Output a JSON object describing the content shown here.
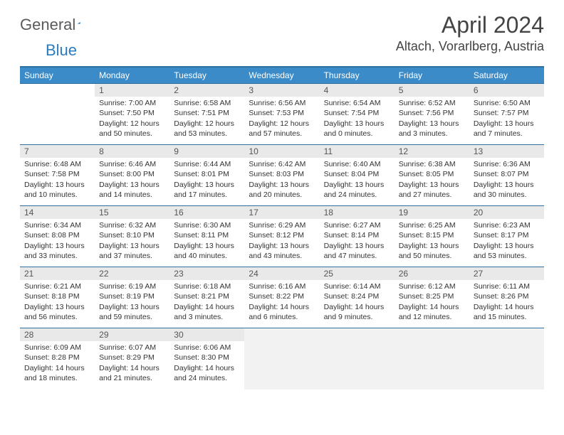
{
  "logo": {
    "text1": "General",
    "text2": "Blue"
  },
  "title": "April 2024",
  "location": "Altach, Vorarlberg, Austria",
  "colors": {
    "header_bg": "#3b8bc9",
    "header_border": "#2f6fa0",
    "daynum_bg": "#e9e9e9",
    "filler_bg": "#f2f2f2"
  },
  "weekdays": [
    "Sunday",
    "Monday",
    "Tuesday",
    "Wednesday",
    "Thursday",
    "Friday",
    "Saturday"
  ],
  "weeks": [
    [
      null,
      {
        "n": "1",
        "sr": "7:00 AM",
        "ss": "7:50 PM",
        "dl": "12 hours and 50 minutes."
      },
      {
        "n": "2",
        "sr": "6:58 AM",
        "ss": "7:51 PM",
        "dl": "12 hours and 53 minutes."
      },
      {
        "n": "3",
        "sr": "6:56 AM",
        "ss": "7:53 PM",
        "dl": "12 hours and 57 minutes."
      },
      {
        "n": "4",
        "sr": "6:54 AM",
        "ss": "7:54 PM",
        "dl": "13 hours and 0 minutes."
      },
      {
        "n": "5",
        "sr": "6:52 AM",
        "ss": "7:56 PM",
        "dl": "13 hours and 3 minutes."
      },
      {
        "n": "6",
        "sr": "6:50 AM",
        "ss": "7:57 PM",
        "dl": "13 hours and 7 minutes."
      }
    ],
    [
      {
        "n": "7",
        "sr": "6:48 AM",
        "ss": "7:58 PM",
        "dl": "13 hours and 10 minutes."
      },
      {
        "n": "8",
        "sr": "6:46 AM",
        "ss": "8:00 PM",
        "dl": "13 hours and 14 minutes."
      },
      {
        "n": "9",
        "sr": "6:44 AM",
        "ss": "8:01 PM",
        "dl": "13 hours and 17 minutes."
      },
      {
        "n": "10",
        "sr": "6:42 AM",
        "ss": "8:03 PM",
        "dl": "13 hours and 20 minutes."
      },
      {
        "n": "11",
        "sr": "6:40 AM",
        "ss": "8:04 PM",
        "dl": "13 hours and 24 minutes."
      },
      {
        "n": "12",
        "sr": "6:38 AM",
        "ss": "8:05 PM",
        "dl": "13 hours and 27 minutes."
      },
      {
        "n": "13",
        "sr": "6:36 AM",
        "ss": "8:07 PM",
        "dl": "13 hours and 30 minutes."
      }
    ],
    [
      {
        "n": "14",
        "sr": "6:34 AM",
        "ss": "8:08 PM",
        "dl": "13 hours and 33 minutes."
      },
      {
        "n": "15",
        "sr": "6:32 AM",
        "ss": "8:10 PM",
        "dl": "13 hours and 37 minutes."
      },
      {
        "n": "16",
        "sr": "6:30 AM",
        "ss": "8:11 PM",
        "dl": "13 hours and 40 minutes."
      },
      {
        "n": "17",
        "sr": "6:29 AM",
        "ss": "8:12 PM",
        "dl": "13 hours and 43 minutes."
      },
      {
        "n": "18",
        "sr": "6:27 AM",
        "ss": "8:14 PM",
        "dl": "13 hours and 47 minutes."
      },
      {
        "n": "19",
        "sr": "6:25 AM",
        "ss": "8:15 PM",
        "dl": "13 hours and 50 minutes."
      },
      {
        "n": "20",
        "sr": "6:23 AM",
        "ss": "8:17 PM",
        "dl": "13 hours and 53 minutes."
      }
    ],
    [
      {
        "n": "21",
        "sr": "6:21 AM",
        "ss": "8:18 PM",
        "dl": "13 hours and 56 minutes."
      },
      {
        "n": "22",
        "sr": "6:19 AM",
        "ss": "8:19 PM",
        "dl": "13 hours and 59 minutes."
      },
      {
        "n": "23",
        "sr": "6:18 AM",
        "ss": "8:21 PM",
        "dl": "14 hours and 3 minutes."
      },
      {
        "n": "24",
        "sr": "6:16 AM",
        "ss": "8:22 PM",
        "dl": "14 hours and 6 minutes."
      },
      {
        "n": "25",
        "sr": "6:14 AM",
        "ss": "8:24 PM",
        "dl": "14 hours and 9 minutes."
      },
      {
        "n": "26",
        "sr": "6:12 AM",
        "ss": "8:25 PM",
        "dl": "14 hours and 12 minutes."
      },
      {
        "n": "27",
        "sr": "6:11 AM",
        "ss": "8:26 PM",
        "dl": "14 hours and 15 minutes."
      }
    ],
    [
      {
        "n": "28",
        "sr": "6:09 AM",
        "ss": "8:28 PM",
        "dl": "14 hours and 18 minutes."
      },
      {
        "n": "29",
        "sr": "6:07 AM",
        "ss": "8:29 PM",
        "dl": "14 hours and 21 minutes."
      },
      {
        "n": "30",
        "sr": "6:06 AM",
        "ss": "8:30 PM",
        "dl": "14 hours and 24 minutes."
      },
      null,
      null,
      null,
      null
    ]
  ],
  "labels": {
    "sunrise": "Sunrise:",
    "sunset": "Sunset:",
    "daylight": "Daylight:"
  }
}
